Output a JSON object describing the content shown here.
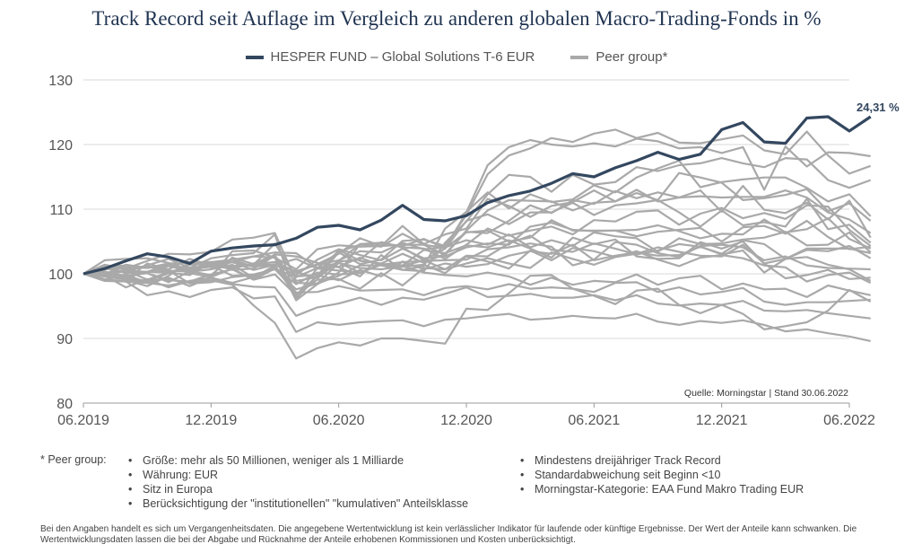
{
  "title": "Track Record seit Auflage im Vergleich zu anderen globalen Macro-Trading-Fonds in %",
  "colors": {
    "fund": "#33475f",
    "peer": "#a9a9a9",
    "grid": "#d9d9d9",
    "axis": "#999999"
  },
  "legend": {
    "fund": "HESPER FUND – Global Solutions T-6 EUR",
    "peer": "Peer group*"
  },
  "source": "Quelle: Morningstar | Stand 30.06.2022",
  "chart_data": {
    "type": "line",
    "title": "Track Record seit Auflage im Vergleich zu anderen globalen Macro-Trading-Fonds in %",
    "ylim": [
      80,
      130
    ],
    "yticks": [
      80,
      90,
      100,
      110,
      120,
      130
    ],
    "xlim": [
      0,
      36
    ],
    "xticks": [
      {
        "x": 0,
        "label": "06.2019"
      },
      {
        "x": 6,
        "label": "12.2019"
      },
      {
        "x": 12,
        "label": "06.2020"
      },
      {
        "x": 18,
        "label": "12.2020"
      },
      {
        "x": 24,
        "label": "06.2021"
      },
      {
        "x": 30,
        "label": "12.2021"
      },
      {
        "x": 36,
        "label": "06.2022"
      }
    ],
    "grid": true,
    "legend_position": "top",
    "end_label": "24,31 %",
    "series": [
      {
        "name": "HESPER FUND – Global Solutions T-6 EUR",
        "role": "fund",
        "values": [
          100,
          100.8,
          102,
          103.1,
          102.6,
          101.6,
          103.5,
          104,
          104.3,
          104.5,
          105.5,
          107.2,
          107.5,
          106.8,
          108.3,
          110.6,
          108.4,
          108.2,
          109,
          111,
          112.1,
          112.8,
          114,
          115.5,
          115,
          116.4,
          117.5,
          118.8,
          117.7,
          118.5,
          122.3,
          123.4,
          120.4,
          120.2,
          124.1,
          124.3,
          122.1,
          124.31
        ]
      },
      {
        "name": "Peer group*",
        "role": "peer",
        "values": [
          100,
          101.2,
          100.1,
          100.3,
          101.5,
          100.7,
          101.1,
          100.9,
          101.5,
          101.8,
          100.2,
          101.5,
          103.1,
          105.5,
          104.3,
          104.5,
          104.5,
          104,
          109.5,
          116.8,
          119.6,
          120.7,
          120,
          119.7,
          120.2,
          119.7,
          120.9,
          120.5,
          119.4,
          119.6,
          118.7,
          119.6,
          113,
          119.7,
          116.6,
          118.8,
          118.7,
          118.2
        ]
      },
      {
        "name": "Peer group*",
        "role": "peer",
        "values": [
          100,
          101.4,
          100.8,
          102,
          103.1,
          103,
          103.4,
          105.3,
          105.6,
          106.3,
          98.9,
          99.5,
          103.3,
          101.5,
          102.2,
          105.1,
          105.3,
          104.3,
          109.1,
          115.4,
          118.3,
          119.4,
          121,
          120.4,
          121.7,
          122.3,
          121,
          121.8,
          120.3,
          120.2,
          120.8,
          121.4,
          119.1,
          118.5,
          122,
          118.3,
          115.5,
          116.7
        ]
      },
      {
        "name": "Peer group*",
        "role": "peer",
        "values": [
          100,
          102.1,
          102.3,
          102.4,
          101.7,
          100.6,
          101.8,
          101.8,
          102.7,
          103.3,
          103.2,
          100.9,
          101.1,
          102.5,
          101.3,
          100.6,
          100.4,
          104.8,
          108.1,
          112.3,
          115.3,
          115,
          112.7,
          115.3,
          113.8,
          114.2,
          116.5,
          115.9,
          116.8,
          117.1,
          117.9,
          117.1,
          116.5,
          117.9,
          117.7,
          114.5,
          113.3,
          114.5
        ]
      },
      {
        "name": "Peer group*",
        "role": "peer",
        "values": [
          100,
          100.7,
          101,
          100.9,
          101.4,
          101.8,
          101.8,
          102.2,
          102.7,
          102.5,
          100.7,
          103.8,
          104.4,
          104.2,
          104.3,
          107.4,
          104.6,
          106.1,
          107,
          111.6,
          110.5,
          108.8,
          110.5,
          111.1,
          112.9,
          111.2,
          112.5,
          111.4,
          115.6,
          114.9,
          114.1,
          111.4,
          111.7,
          112.2,
          113.1,
          109.7,
          110.9,
          108.2
        ]
      },
      {
        "name": "Peer group*",
        "role": "peer",
        "values": [
          100,
          100.4,
          99,
          98.1,
          99.7,
          101.8,
          101,
          102.2,
          101.1,
          103,
          102.7,
          101.7,
          101,
          99.6,
          102.9,
          100.6,
          101.2,
          107,
          109.6,
          112.6,
          110.1,
          112.3,
          111.1,
          111.5,
          113.7,
          112.6,
          114.9,
          116.3,
          117.5,
          113.4,
          114.2,
          114.6,
          114.9,
          114.9,
          113.3,
          111.2,
          112.3,
          108.9
        ]
      },
      {
        "name": "Peer group*",
        "role": "peer",
        "values": [
          100,
          101.1,
          101.3,
          101,
          101.5,
          100.1,
          99.5,
          103.5,
          103.6,
          102.5,
          95.9,
          98.4,
          100.2,
          104.6,
          104.2,
          106.2,
          104.5,
          102.9,
          106.7,
          109.8,
          111.4,
          111.3,
          111.2,
          109.8,
          111,
          111.2,
          113,
          111.2,
          111.8,
          112.9,
          109.6,
          113.6,
          109.9,
          109.4,
          111,
          108.4,
          111.3,
          105.6
        ]
      },
      {
        "name": "Peer group*",
        "role": "peer",
        "values": [
          100,
          100.8,
          100.3,
          101.3,
          102.3,
          100.9,
          102.4,
          102.9,
          103.2,
          106.1,
          96.1,
          99.7,
          103.7,
          102,
          101.6,
          103.1,
          101.7,
          103.1,
          106.5,
          106.3,
          108.2,
          110.6,
          109.4,
          111.4,
          110.8,
          112.8,
          111.7,
          112.6,
          111.8,
          112,
          111.8,
          111.9,
          111.9,
          112.9,
          111.8,
          109.5,
          108.4,
          106.3
        ]
      },
      {
        "name": "Peer group*",
        "role": "peer",
        "values": [
          100,
          99.9,
          101.4,
          100.9,
          101.6,
          101.7,
          101.8,
          100.8,
          101.6,
          102.9,
          96.7,
          99.7,
          102,
          104.6,
          104.8,
          104.1,
          102.1,
          103.9,
          108.2,
          109.2,
          107.7,
          109.5,
          109.5,
          111,
          109.1,
          110.6,
          110.9,
          111.4,
          109.5,
          107.3,
          109.8,
          107.5,
          108,
          107.3,
          111.6,
          106.9,
          107.6,
          104.8
        ]
      },
      {
        "name": "Peer group*",
        "role": "peer",
        "values": [
          100,
          100.2,
          99.7,
          100.1,
          98.7,
          100.4,
          99.8,
          102.5,
          101.5,
          101.8,
          100.3,
          99.3,
          101.9,
          102.2,
          104.9,
          104.1,
          103.9,
          102.3,
          104.5,
          107,
          105.9,
          106.7,
          107.3,
          106.1,
          108.3,
          108.1,
          109.6,
          109.8,
          107.6,
          109.3,
          110.2,
          108.6,
          109.4,
          108.5,
          110.6,
          110.4,
          106.8,
          104.3
        ]
      },
      {
        "name": "Peer group*",
        "role": "peer",
        "values": [
          100,
          100.8,
          100.8,
          101.2,
          100.3,
          100.9,
          101.2,
          101,
          101.4,
          101.4,
          99.8,
          102.2,
          103.8,
          102.9,
          102.1,
          103.9,
          102.4,
          102.7,
          104.1,
          104.7,
          104.5,
          107.3,
          107.9,
          106.8,
          106.6,
          106.7,
          105.8,
          106.5,
          106.8,
          107.1,
          105,
          107.2,
          107.4,
          106.2,
          108.2,
          105.7,
          103.8,
          104.2
        ]
      },
      {
        "name": "Peer group*",
        "role": "peer",
        "values": [
          100,
          100.2,
          100.5,
          100.3,
          100.2,
          99.8,
          101.8,
          101.2,
          101.4,
          104.7,
          99.5,
          100.9,
          103.4,
          104.5,
          104.7,
          104.3,
          105.4,
          104,
          106.4,
          106.7,
          105,
          105.6,
          108.3,
          106.7,
          106.7,
          106.7,
          106.8,
          107.5,
          106.6,
          105.5,
          106.2,
          106.1,
          108.4,
          106.4,
          106.9,
          108.6,
          105.4,
          103.9
        ]
      },
      {
        "name": "Peer group*",
        "role": "peer",
        "values": [
          100,
          99.7,
          100.5,
          99.1,
          100.2,
          101,
          101.1,
          101.8,
          101.1,
          101.4,
          100.4,
          101.4,
          102.1,
          103.5,
          103.3,
          104.8,
          103.8,
          104.1,
          105.2,
          104.5,
          106.1,
          104.1,
          105.2,
          104.3,
          106.4,
          105.8,
          105.5,
          103.4,
          105.5,
          104.6,
          104.7,
          105.3,
          105.6,
          106.5,
          104.4,
          104.5,
          106.4,
          103.3
        ]
      },
      {
        "name": "Peer group*",
        "role": "peer",
        "values": [
          100,
          99.8,
          99.1,
          101.6,
          100.7,
          102.3,
          101.3,
          99.7,
          99.9,
          100.7,
          97.6,
          98.5,
          101.7,
          100.9,
          100.7,
          101.2,
          102.1,
          100.7,
          102.8,
          102.7,
          104.7,
          105.9,
          103.7,
          103.4,
          104.7,
          103.9,
          103,
          103.6,
          104.6,
          104.2,
          103.1,
          105.2,
          104.6,
          102.3,
          103.9,
          103.9,
          103.9,
          103.2
        ]
      },
      {
        "name": "Peer group*",
        "role": "peer",
        "values": [
          100,
          100.1,
          99.4,
          100.3,
          101.2,
          100.4,
          101.3,
          101.8,
          100.6,
          101.4,
          102.3,
          100.8,
          100.5,
          100.2,
          101.5,
          101.3,
          103.7,
          103.2,
          104.4,
          104.1,
          105.2,
          103.9,
          102.5,
          105.6,
          104.6,
          105.3,
          102.7,
          102.3,
          102.4,
          104.9,
          103.9,
          105,
          101.6,
          102.3,
          103.7,
          103.5,
          104.3,
          102.4
        ]
      },
      {
        "name": "Peer group*",
        "role": "peer",
        "values": [
          100,
          99.9,
          100.6,
          101.2,
          100.5,
          100.3,
          100.7,
          101.4,
          99.4,
          101.3,
          96.5,
          100.9,
          101.7,
          100.2,
          101.4,
          101.8,
          102,
          102.1,
          102.2,
          103.8,
          104.1,
          104.7,
          104.2,
          101.3,
          102.2,
          104.9,
          104.5,
          103.2,
          102.6,
          104.3,
          104.5,
          104.1,
          102.1,
          102.7,
          101.3,
          100.9,
          100.8,
          100.7
        ]
      },
      {
        "name": "Peer group*",
        "role": "peer",
        "values": [
          100,
          99.6,
          99.1,
          98.8,
          100.1,
          101.4,
          101.6,
          100.6,
          100.8,
          102.8,
          98.6,
          98.5,
          99.7,
          101.3,
          101.3,
          101.1,
          101.4,
          100.1,
          102.7,
          101.9,
          100.8,
          103.6,
          102.1,
          104,
          103.5,
          102.6,
          103.1,
          104.1,
          103.4,
          102.8,
          102.7,
          104.5,
          101.6,
          99.3,
          99.8,
          100.6,
          99.2,
          99.4
        ]
      },
      {
        "name": "Peer group*",
        "role": "peer",
        "values": [
          100,
          100,
          100.4,
          100.3,
          100.5,
          98.5,
          98.7,
          99.5,
          99.8,
          100.7,
          99.6,
          99.8,
          99,
          100.6,
          99.6,
          101.9,
          100.7,
          101.6,
          101.1,
          101.5,
          102.8,
          103.5,
          103.1,
          104.5,
          102.1,
          102.8,
          103.3,
          102.8,
          102.9,
          104.2,
          103,
          103.6,
          100.2,
          102.3,
          102.6,
          101.4,
          100.7,
          98.9
        ]
      },
      {
        "name": "Peer group*",
        "role": "peer",
        "values": [
          100,
          101.3,
          100.7,
          100.1,
          99,
          98.8,
          99.9,
          100.7,
          99.1,
          99.9,
          96.7,
          99.1,
          99.2,
          97.7,
          100.1,
          98.2,
          100.9,
          100.7,
          101.6,
          102.4,
          101.6,
          100.9,
          103.3,
          102.3,
          101.4,
          102.6,
          103.5,
          102.2,
          101.2,
          102.5,
          102.9,
          102.4,
          101.3,
          101,
          98.8,
          99.8,
          100.2,
          98.6
        ]
      },
      {
        "name": "Peer group*",
        "role": "peer",
        "values": [
          100,
          99.1,
          99.9,
          98.6,
          98.2,
          98.8,
          99.4,
          98.6,
          99.5,
          101,
          98.4,
          100.2,
          99.9,
          100.1,
          101.5,
          101.2,
          100.2,
          99.8,
          99.6,
          100.2,
          99.6,
          98.3,
          99.4,
          98.3,
          98.9,
          98.7,
          99.9,
          98.3,
          99.3,
          99.7,
          97.6,
          98.5,
          97.6,
          97.7,
          96.4,
          98.2,
          97.4,
          96.7
        ]
      },
      {
        "name": "Peer group*",
        "role": "peer",
        "values": [
          100,
          99.2,
          98.8,
          98.6,
          99.4,
          98.1,
          99.5,
          100.8,
          99.1,
          100.8,
          97.1,
          97.2,
          98.1,
          97.4,
          97.5,
          97.6,
          96.7,
          97.8,
          98.1,
          97.6,
          98.4,
          97.7,
          97.9,
          97.7,
          97.2,
          98.6,
          98.7,
          97.2,
          97.9,
          96.8,
          97.2,
          97.8,
          95.7,
          95.2,
          95.6,
          95.6,
          95.8,
          96
        ]
      },
      {
        "name": "Peer group*",
        "role": "peer",
        "values": [
          100,
          99.7,
          97.9,
          99.2,
          97.9,
          98.9,
          99.3,
          98.4,
          98,
          97.9,
          93.5,
          94.8,
          95.4,
          96.3,
          95.2,
          96.3,
          96,
          96.9,
          97.9,
          96.4,
          96.6,
          96.9,
          96.3,
          96.3,
          96.7,
          95.9,
          96.7,
          95.4,
          95.1,
          95.4,
          95.2,
          95.8,
          94.3,
          94.2,
          94.4,
          93.9,
          93.5,
          93.1
        ]
      },
      {
        "name": "Peer group*",
        "role": "peer",
        "values": [
          100,
          98.9,
          98.8,
          96.7,
          97.3,
          96.4,
          97.5,
          97.9,
          96.2,
          96.5,
          91,
          92.5,
          92.1,
          92.5,
          92.7,
          92.8,
          91.9,
          92.9,
          93.1,
          93.5,
          93.8,
          92.9,
          93.1,
          93.5,
          93.2,
          93.1,
          93.8,
          92.6,
          92.1,
          92.7,
          92.4,
          92.8,
          92.1,
          91.1,
          91.4,
          90.8,
          90.3,
          89.6
        ]
      },
      {
        "name": "Peer group*",
        "role": "peer",
        "values": [
          100,
          99.6,
          99.4,
          98.9,
          99.2,
          98.6,
          99,
          98.3,
          95.1,
          92.4,
          86.9,
          88.5,
          89.4,
          88.9,
          90,
          90,
          89.6,
          89.2,
          94.6,
          94.4,
          97,
          99.7,
          99.8,
          97.7,
          96.6,
          95.3,
          97.4,
          97.7,
          95.2,
          93.9,
          95.2,
          93.8,
          91.4,
          91.9,
          92.5,
          94.3,
          97.5,
          95.7
        ]
      }
    ]
  },
  "notes": {
    "label": "* Peer group:",
    "left": [
      "Größe: mehr als 50 Millionen, weniger als 1 Milliarde",
      "Währung: EUR",
      "Sitz in Europa",
      "Berücksichtigung der \"institutionellen\" \"kumulativen\" Anteilsklasse"
    ],
    "right": [
      "Mindestens dreijähriger Track Record",
      "Standardabweichung seit Beginn <10",
      "Morningstar-Kategorie: EAA Fund Makro Trading EUR"
    ]
  },
  "disclaimer": "Bei den Angaben handelt es sich um Vergangenheitsdaten. Die angegebene Wertentwicklung ist kein verlässlicher Indikator für laufende oder künftige Ergebnisse. Der Wert der Anteile kann schwanken. Die Wertentwicklungsdaten lassen die bei der Abgabe und Rücknahme der Anteile erhobenen Kommissionen und Kosten unberücksichtigt."
}
